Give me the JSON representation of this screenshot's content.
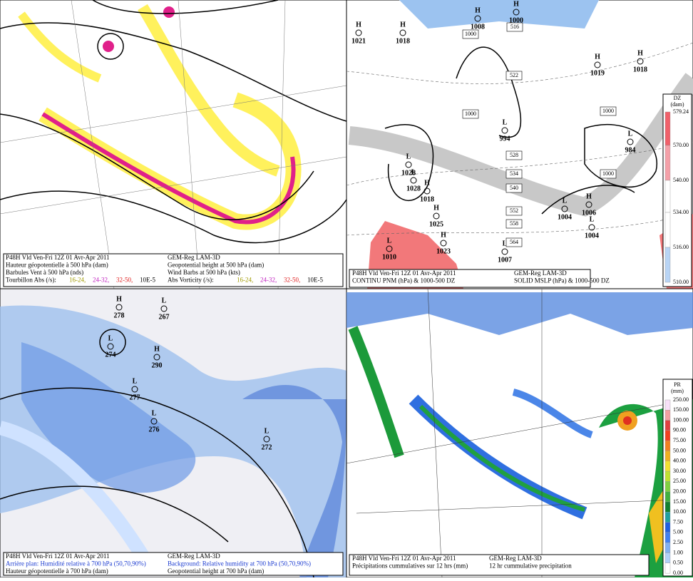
{
  "panels": [
    {
      "caption": {
        "left": [
          "P48H Vld Ven-Fri 12Z 01 Avr-Apr 2011",
          "Hauteur géopotentielle à 500 hPa (dam)",
          "Barbules Vent à 500 hPa (nds)",
          "Tourbillon Abs (/s):"
        ],
        "right": [
          "GEM-Reg LAM-3D",
          "Geopotential height at 500 hPa (dam)",
          "Wind Barbs at 500 hPa (kts)",
          "Abs Vorticity (/s):"
        ],
        "ranges": [
          "16-24,",
          "24-32,",
          "32-50,",
          "10E-5"
        ]
      },
      "centers": []
    },
    {
      "caption": {
        "left": [
          "P48H Vld Ven-Fri 12Z 01 Avr-Apr 2011",
          "CONTINU PNM (hPa) & 1000-500 DZ"
        ],
        "right": [
          "GEM-Reg LAM-3D",
          "SOLID  MSLP (hPa) & 1000-500 DZ"
        ]
      },
      "centers": [
        {
          "kind": "H",
          "value": "1021"
        },
        {
          "kind": "H",
          "value": "1018"
        },
        {
          "kind": "H",
          "value": "1008"
        },
        {
          "kind": "H",
          "value": "1000"
        },
        {
          "kind": "H",
          "value": "1019"
        },
        {
          "kind": "H",
          "value": "1018"
        },
        {
          "kind": "L",
          "value": "994"
        },
        {
          "kind": "L",
          "value": "984"
        },
        {
          "kind": "L",
          "value": "1028"
        },
        {
          "kind": "L",
          "value": "1028"
        },
        {
          "kind": "H",
          "value": "1018"
        },
        {
          "kind": "H",
          "value": "1025"
        },
        {
          "kind": "H",
          "value": "1023"
        },
        {
          "kind": "L",
          "value": "1010"
        },
        {
          "kind": "L",
          "value": "1007"
        },
        {
          "kind": "L",
          "value": "1004"
        },
        {
          "kind": "H",
          "value": "1006"
        },
        {
          "kind": "L",
          "value": "1004"
        }
      ],
      "contour_labels": [
        "516",
        "1000",
        "522",
        "1000",
        "528",
        "534",
        "540",
        "552",
        "558",
        "564",
        "1000",
        "1000"
      ],
      "colorbar": {
        "title": "DZ",
        "unit": "(dam)",
        "labels": [
          "579.24",
          "570.00",
          "540.00",
          "534.00",
          "516.00",
          "510.00"
        ]
      }
    },
    {
      "caption": {
        "left": [
          "P48H Vld Ven-Fri 12Z 01 Avr-Apr 2011",
          "Arrière plan: Humidité relative à 700 hPa (50,70,90%)",
          "Hauteur géopotentielle à 700 hPa (dam)"
        ],
        "right": [
          "GEM-Reg LAM-3D",
          "Background: Relative humidity at 700 hPa (50,70,90%)",
          "Geopotential height at 700 hPa (dam)"
        ]
      },
      "centers": [
        {
          "kind": "H",
          "value": "278"
        },
        {
          "kind": "L",
          "value": "267"
        },
        {
          "kind": "L",
          "value": "274"
        },
        {
          "kind": "H",
          "value": "290"
        },
        {
          "kind": "L",
          "value": "277"
        },
        {
          "kind": "L",
          "value": "276"
        },
        {
          "kind": "L",
          "value": "272"
        }
      ]
    },
    {
      "caption": {
        "left": [
          "P48H Vld Ven-Fri 12Z 01 Avr-Apr 2011",
          "Précipitations cummulatives sur 12 hrs (mm)"
        ],
        "right": [
          "GEM-Reg LAM-3D",
          "12 hr cummulative precipitation"
        ]
      },
      "centers": [],
      "colorbar": {
        "title": "PR",
        "unit": "(mm)",
        "labels": [
          "250.00",
          "150.00",
          "100.00",
          "90.00",
          "75.00",
          "50.00",
          "40.00",
          "30.00",
          "25.00",
          "20.00",
          "15.00",
          "10.00",
          "7.50",
          "5.00",
          "2.50",
          "1.00",
          "0.50",
          "0.00"
        ]
      }
    }
  ]
}
